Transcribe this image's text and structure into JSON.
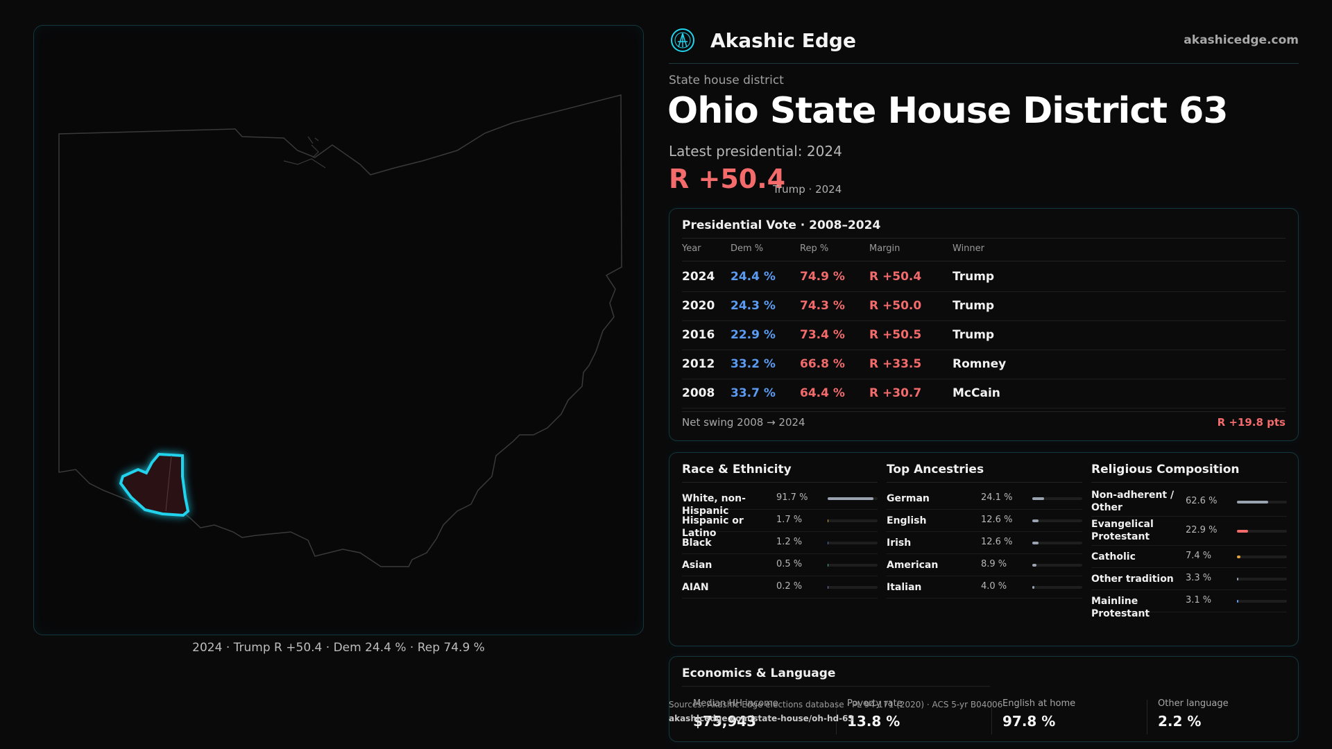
{
  "brand": {
    "name": "Akashic Edge",
    "site": "akashicedge.com",
    "logo_icon": "akashic-edge-logo"
  },
  "header": {
    "subtitle": "State house district",
    "title": "Ohio State House District 63",
    "latest_label": "Latest presidential: 2024",
    "margin": "R +50.4",
    "margin_sub": "Trump · 2024"
  },
  "map": {
    "caption": "2024 · Trump R +50.4 · Dem 24.4 % · Rep 74.9 %",
    "colors": {
      "state_outline": "#3a3a3a",
      "district_outline": "#22d3ee",
      "district_fill": "#2a1214"
    }
  },
  "vote_table": {
    "title": "Presidential Vote · 2008–2024",
    "headers": {
      "year": "Year",
      "dem": "Dem %",
      "rep": "Rep %",
      "margin": "Margin",
      "winner": "Winner"
    },
    "rows": [
      {
        "year": "2024",
        "dem": "24.4 %",
        "rep": "74.9 %",
        "margin": "R +50.4",
        "winner": "Trump"
      },
      {
        "year": "2020",
        "dem": "24.3 %",
        "rep": "74.3 %",
        "margin": "R +50.0",
        "winner": "Trump"
      },
      {
        "year": "2016",
        "dem": "22.9 %",
        "rep": "73.4 %",
        "margin": "R +50.5",
        "winner": "Trump"
      },
      {
        "year": "2012",
        "dem": "33.2 %",
        "rep": "66.8 %",
        "margin": "R +33.5",
        "winner": "Romney"
      },
      {
        "year": "2008",
        "dem": "33.7 %",
        "rep": "64.4 %",
        "margin": "R +30.7",
        "winner": "McCain"
      }
    ],
    "net_swing_label": "Net swing 2008 → 2024",
    "net_swing_value": "R +19.8 pts"
  },
  "race": {
    "title": "Race & Ethnicity",
    "items": [
      {
        "label": "White, non-Hispanic",
        "value": "91.7 %",
        "share": 0.917,
        "color": "#9aa3b0"
      },
      {
        "label": "Hispanic or Latino",
        "value": "1.7 %",
        "share": 0.017,
        "color": "#e0a33a"
      },
      {
        "label": "Black",
        "value": "1.2 %",
        "share": 0.012,
        "color": "#4f78c4"
      },
      {
        "label": "Asian",
        "value": "0.5 %",
        "share": 0.005,
        "color": "#3fb38a"
      },
      {
        "label": "AIAN",
        "value": "0.2 %",
        "share": 0.002,
        "color": "#8f6fd0"
      }
    ]
  },
  "ancestry": {
    "title": "Top Ancestries",
    "items": [
      {
        "label": "German",
        "value": "24.1 %",
        "share": 0.241,
        "color": "#9aa3b0"
      },
      {
        "label": "English",
        "value": "12.6 %",
        "share": 0.126,
        "color": "#9aa3b0"
      },
      {
        "label": "Irish",
        "value": "12.6 %",
        "share": 0.126,
        "color": "#9aa3b0"
      },
      {
        "label": "American",
        "value": "8.9 %",
        "share": 0.089,
        "color": "#9aa3b0"
      },
      {
        "label": "Italian",
        "value": "4.0 %",
        "share": 0.04,
        "color": "#9aa3b0"
      }
    ]
  },
  "religion": {
    "title": "Religious Composition",
    "items": [
      {
        "label": "Non-adherent / Other",
        "value": "62.6 %",
        "share": 0.626,
        "color": "#9aa3b0"
      },
      {
        "label": "Evangelical Protestant",
        "value": "22.9 %",
        "share": 0.229,
        "color": "#f36b6b"
      },
      {
        "label": "Catholic",
        "value": "7.4 %",
        "share": 0.074,
        "color": "#e0a33a"
      },
      {
        "label": "Other tradition",
        "value": "3.3 %",
        "share": 0.033,
        "color": "#9aa3b0"
      },
      {
        "label": "Mainline Protestant",
        "value": "3.1 %",
        "share": 0.031,
        "color": "#5b9cf2"
      }
    ]
  },
  "economics": {
    "title": "Economics & Language",
    "items": [
      {
        "label": "Median HH income",
        "value": "$75,943"
      },
      {
        "label": "Poverty rate",
        "value": "13.8 %"
      },
      {
        "label": "English at home",
        "value": "97.8 %"
      },
      {
        "label": "Other language",
        "value": "2.2 %"
      }
    ]
  },
  "footer": {
    "source": "Sources: Akashic Edge elections database · PL 94-171 (2020) · ACS 5-yr B04006",
    "url": "akashicedge.com/state-house/oh-hd-63"
  }
}
